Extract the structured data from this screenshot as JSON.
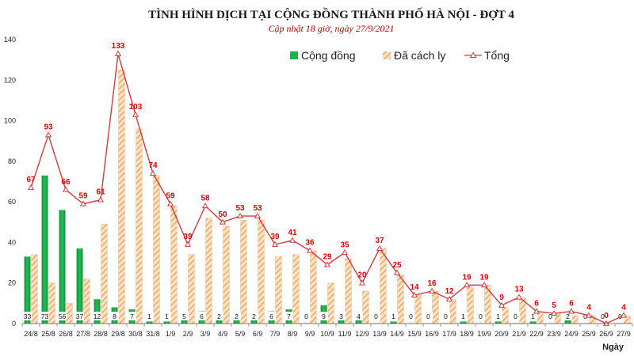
{
  "title": "TÌNH HÌNH DỊCH TẠI CỘNG ĐỒNG THÀNH PHỐ HÀ NỘI - ĐỢT 4",
  "subtitle": "Cập nhật 18 giờ, ngày 27/9/2021",
  "colors": {
    "community": "#1db14b",
    "quarantined": "#f2a660",
    "total": "#d43a3a",
    "label": "#e00000"
  },
  "chart_data": {
    "type": "bar",
    "title": "TÌNH HÌNH DỊCH TẠI CỘNG ĐỒNG THÀNH PHỐ HÀ NỘI - ĐỢT 4",
    "subtitle": "Cập nhật 18 giờ, ngày 27/9/2021",
    "xlabel": "Ngày",
    "ylabel": "",
    "ylim": [
      0,
      140
    ],
    "yticks": [
      0,
      20,
      40,
      60,
      80,
      100,
      120,
      140
    ],
    "grid": false,
    "legend_position": "top-right",
    "categories": [
      "24/8",
      "25/8",
      "26/8",
      "27/8",
      "28/8",
      "29/8",
      "30/8",
      "31/8",
      "1/9",
      "2/9",
      "3/9",
      "4/9",
      "5/9",
      "6/9",
      "7/9",
      "8/9",
      "9/9",
      "10/9",
      "11/9",
      "12/9",
      "13/9",
      "14/9",
      "15/9",
      "16/9",
      "17/9",
      "18/9",
      "19/9",
      "20/9",
      "21/9",
      "22/9",
      "23/9",
      "24/9",
      "25/9",
      "26/9",
      "27/9"
    ],
    "series": [
      {
        "name": "Cộng đồng",
        "type": "bar",
        "values": [
          33,
          73,
          56,
          37,
          12,
          8,
          7,
          1,
          1,
          5,
          6,
          2,
          2,
          2,
          6,
          7,
          0,
          9,
          3,
          4,
          0,
          1,
          0,
          0,
          0,
          1,
          0,
          1,
          0,
          1,
          0,
          2,
          0,
          0,
          0
        ]
      },
      {
        "name": "Đã cách ly",
        "type": "bar",
        "values": [
          34,
          20,
          10,
          22,
          49,
          125,
          96,
          73,
          58,
          34,
          52,
          48,
          51,
          51,
          33,
          34,
          36,
          20,
          32,
          16,
          37,
          24,
          14,
          16,
          12,
          18,
          19,
          8,
          13,
          5,
          5,
          4,
          4,
          0,
          4
        ]
      },
      {
        "name": "Tổng",
        "type": "line",
        "values": [
          67,
          93,
          66,
          59,
          61,
          133,
          103,
          74,
          59,
          39,
          58,
          50,
          53,
          53,
          39,
          41,
          36,
          29,
          35,
          20,
          37,
          25,
          14,
          16,
          12,
          19,
          19,
          9,
          13,
          6,
          5,
          6,
          4,
          0,
          4
        ]
      }
    ]
  }
}
